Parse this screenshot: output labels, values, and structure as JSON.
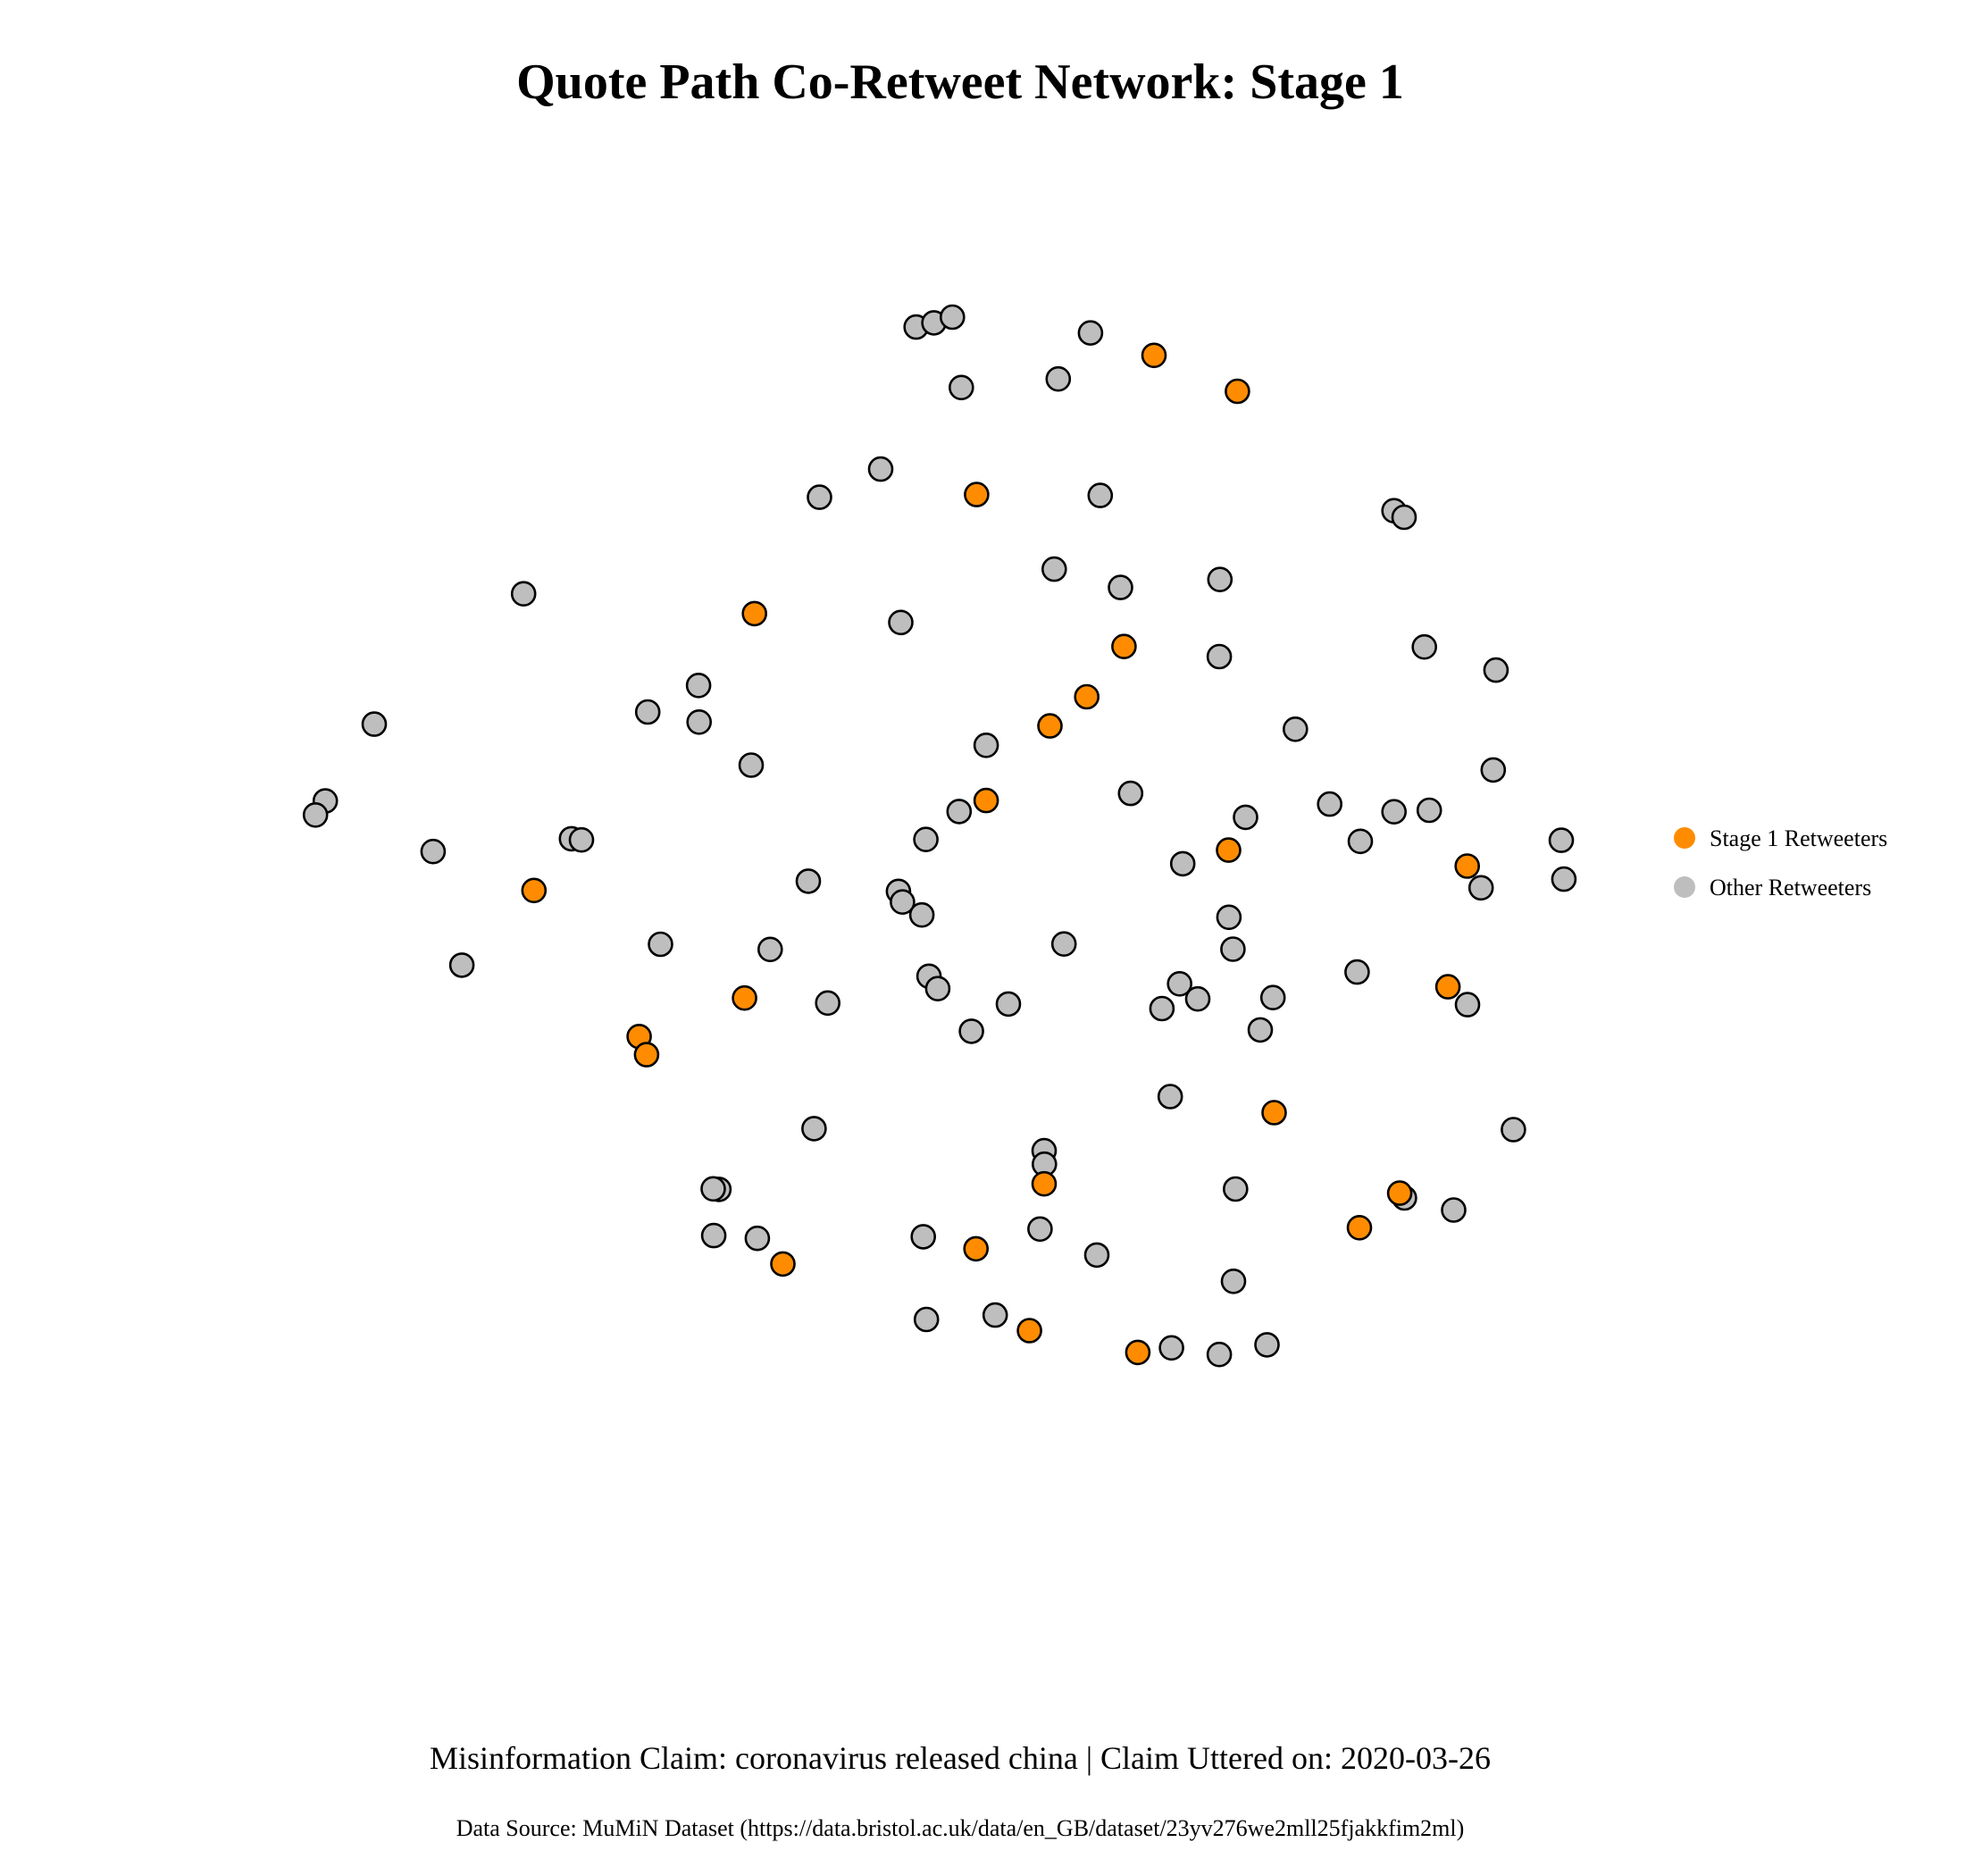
{
  "title": "Quote Path Co-Retweet Network: Stage 1",
  "subtitle": "Misinformation Claim: coronavirus released china | Claim Uttered on: 2020-03-26",
  "caption": "Data Source: MuMiN Dataset (https://data.bristol.ac.uk/data/en_GB/dataset/23yv276we2mll25fjakkfim2ml)",
  "colors": {
    "stage1": "#FF8C00",
    "other": "#BEBEBE",
    "outline": "#000000"
  },
  "chart_data": {
    "type": "scatter",
    "title": "Quote Path Co-Retweet Network: Stage 1",
    "xlabel": "",
    "ylabel": "",
    "grid": false,
    "axes": "none",
    "legend_position": "right",
    "xlim": [
      0,
      1
    ],
    "ylim": [
      0,
      1
    ],
    "series": [
      {
        "name": "Stage 1 Retweeters",
        "color": "#FF8C00",
        "points": [
          [
            0.6453,
            0.9513
          ],
          [
            0.7097,
            0.9196
          ],
          [
            0.5082,
            0.8285
          ],
          [
            0.3366,
            0.7235
          ],
          [
            0.6221,
            0.6945
          ],
          [
            0.5933,
            0.6501
          ],
          [
            0.5649,
            0.6244
          ],
          [
            0.5156,
            0.5586
          ],
          [
            0.7029,
            0.5149
          ],
          [
            0.8873,
            0.5008
          ],
          [
            0.1662,
            0.4793
          ],
          [
            0.3289,
            0.3844
          ],
          [
            0.8724,
            0.3943
          ],
          [
            0.2475,
            0.3504
          ],
          [
            0.2532,
            0.3344
          ],
          [
            0.7381,
            0.2833
          ],
          [
            0.5604,
            0.2205
          ],
          [
            0.8351,
            0.2123
          ],
          [
            0.804,
            0.1818
          ],
          [
            0.3585,
            0.1498
          ],
          [
            0.5077,
            0.1632
          ],
          [
            0.5491,
            0.091
          ],
          [
            0.6328,
            0.0718
          ]
        ]
      },
      {
        "name": "Other Retweeters",
        "color": "#BEBEBE",
        "points": [
          [
            0.4615,
            0.9763
          ],
          [
            0.4752,
            0.98
          ],
          [
            0.4895,
            0.985
          ],
          [
            0.5962,
            0.9711
          ],
          [
            0.5713,
            0.9305
          ],
          [
            0.4964,
            0.9229
          ],
          [
            0.4341,
            0.851
          ],
          [
            0.3868,
            0.8262
          ],
          [
            0.6037,
            0.8277
          ],
          [
            0.8307,
            0.8143
          ],
          [
            0.8385,
            0.8085
          ],
          [
            0.5682,
            0.7627
          ],
          [
            0.6194,
            0.7466
          ],
          [
            0.6962,
            0.7536
          ],
          [
            0.1582,
            0.741
          ],
          [
            0.4496,
            0.7157
          ],
          [
            0.8542,
            0.6941
          ],
          [
            0.9095,
            0.6737
          ],
          [
            0.6957,
            0.6856
          ],
          [
            0.2934,
            0.6601
          ],
          [
            0.2541,
            0.6367
          ],
          [
            0.2938,
            0.6278
          ],
          [
            0.0428,
            0.626
          ],
          [
            0.7545,
            0.6215
          ],
          [
            0.5156,
            0.6073
          ],
          [
            0.334,
            0.5898
          ],
          [
            0.9074,
            0.5856
          ],
          [
            0.005,
            0.5582
          ],
          [
            -0.0026,
            0.5459
          ],
          [
            0.6272,
            0.5649
          ],
          [
            0.4947,
            0.5489
          ],
          [
            0.781,
            0.5555
          ],
          [
            0.8307,
            0.5487
          ],
          [
            0.858,
            0.55
          ],
          [
            0.716,
            0.5438
          ],
          [
            0.1952,
            0.5249
          ],
          [
            0.2029,
            0.5239
          ],
          [
            0.469,
            0.5243
          ],
          [
            0.96,
            0.5236
          ],
          [
            0.8047,
            0.5226
          ],
          [
            0.0883,
            0.5136
          ],
          [
            0.6675,
            0.5028
          ],
          [
            0.3782,
            0.4875
          ],
          [
            0.962,
            0.4893
          ],
          [
            0.898,
            0.4816
          ],
          [
            0.4478,
            0.4785
          ],
          [
            0.4509,
            0.4691
          ],
          [
            0.4659,
            0.4577
          ],
          [
            0.264,
            0.4318
          ],
          [
            0.3487,
            0.4273
          ],
          [
            0.5757,
            0.4321
          ],
          [
            0.7032,
            0.4556
          ],
          [
            0.7063,
            0.4275
          ],
          [
            0.1105,
            0.4134
          ],
          [
            0.4714,
            0.4036
          ],
          [
            0.4782,
            0.3927
          ],
          [
            0.8022,
            0.4073
          ],
          [
            0.6651,
            0.3969
          ],
          [
            0.6791,
            0.3836
          ],
          [
            0.6514,
            0.3751
          ],
          [
            0.7372,
            0.3848
          ],
          [
            0.5328,
            0.3791
          ],
          [
            0.3932,
            0.38
          ],
          [
            0.8875,
            0.3786
          ],
          [
            0.5042,
            0.3551
          ],
          [
            0.7274,
            0.3563
          ],
          [
            0.6578,
            0.2975
          ],
          [
            0.3826,
            0.2692
          ],
          [
            0.923,
            0.2683
          ],
          [
            0.5604,
            0.2497
          ],
          [
            0.5606,
            0.2378
          ],
          [
            0.3091,
            0.2156
          ],
          [
            0.3047,
            0.2161
          ],
          [
            0.7083,
            0.2159
          ],
          [
            0.8388,
            0.208
          ],
          [
            0.8768,
            0.1974
          ],
          [
            0.5572,
            0.1806
          ],
          [
            0.3051,
            0.1749
          ],
          [
            0.3388,
            0.1724
          ],
          [
            0.467,
            0.1738
          ],
          [
            0.6011,
            0.1577
          ],
          [
            0.7067,
            0.1345
          ],
          [
            0.4694,
            0.1009
          ],
          [
            0.5226,
            0.1047
          ],
          [
            0.6588,
            0.0758
          ],
          [
            0.6957,
            0.07
          ],
          [
            0.7326,
            0.0785
          ]
        ]
      }
    ]
  }
}
